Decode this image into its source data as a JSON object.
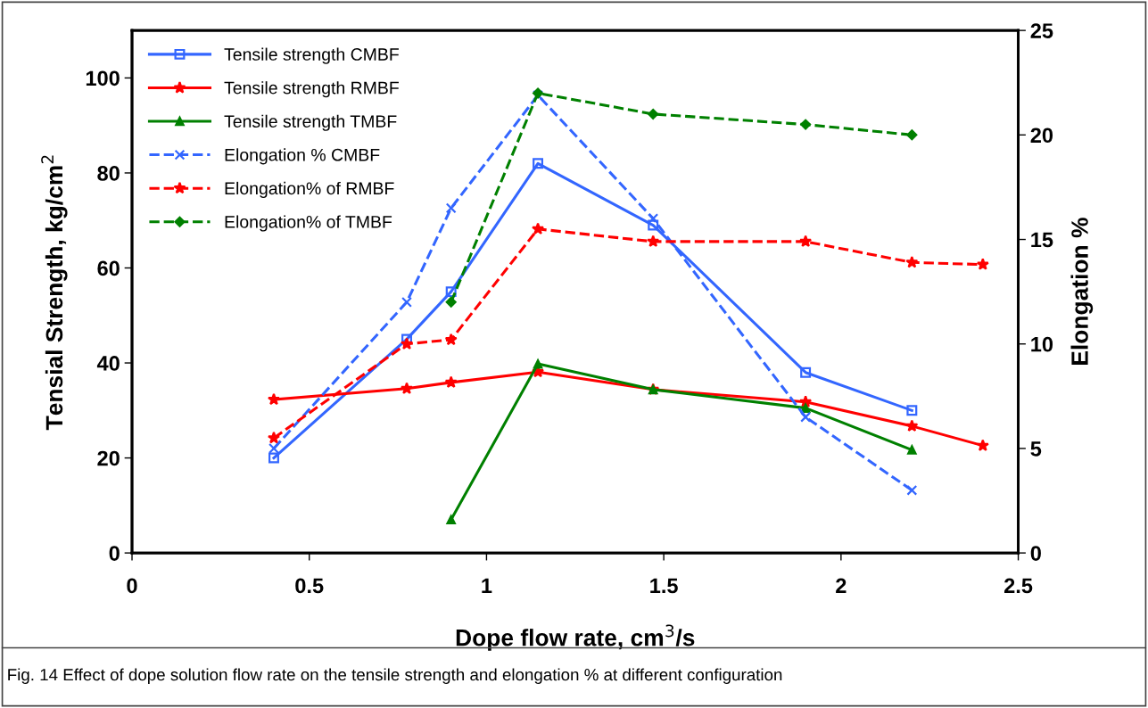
{
  "chart_data": {
    "type": "line",
    "xlabel": "Dope flow rate, cm$^{3}$/s",
    "ylabel": "Tensial Strength, kg/cm$^{2}$",
    "y2label": "Elongation %",
    "xlim": [
      0,
      2.5
    ],
    "xticks": [
      0,
      0.5,
      1,
      1.5,
      2,
      2.5
    ],
    "ylim": [
      0,
      110
    ],
    "yticks": [
      0,
      20,
      40,
      60,
      80,
      100
    ],
    "y2lim": [
      0,
      25
    ],
    "y2ticks": [
      0,
      5,
      10,
      15,
      20,
      25
    ],
    "grid": false,
    "legend": "top left",
    "annotations": [
      "Fig. 14 Effect of dope solution flow rate on the tensile strength and elongation % at different configuration"
    ],
    "series": [
      {
        "name": "Tensile strength CMBF",
        "color": "#3366ff",
        "marker": "square",
        "line_style": "solid",
        "x": [
          0.4,
          0.775,
          0.9,
          1.145,
          1.47,
          1.9,
          2.2
        ],
        "values": [
          20,
          45,
          55,
          82,
          69,
          38,
          30
        ]
      },
      {
        "name": "Tensile strength RMBF",
        "color": "#ff0000",
        "marker": "star",
        "line_style": "solid",
        "x": [
          0.4,
          0.775,
          0.9,
          1.145,
          1.47,
          1.9,
          2.2,
          2.4
        ],
        "values": [
          32.3,
          34.6,
          35.9,
          38.1,
          34.4,
          31.8,
          26.7,
          22.6
        ]
      },
      {
        "name": "Tensile strength TMBF",
        "color": "#008000",
        "marker": "triangle",
        "line_style": "solid",
        "x": [
          0.9,
          1.145,
          1.47,
          1.9,
          2.2
        ],
        "values": [
          7,
          39.8,
          34.4,
          30.5,
          21.7
        ]
      },
      {
        "name": "Elongation % CMBF",
        "color": "#3366ff",
        "marker": "cross",
        "line_style": "dashed",
        "axis": "y2",
        "x": [
          0.4,
          0.775,
          0.9,
          1.145,
          1.47,
          1.9,
          2.2
        ],
        "values": [
          5,
          12,
          16.5,
          21.9,
          16,
          6.5,
          3
        ]
      },
      {
        "name": "Elongation% of RMBF",
        "color": "#ff0000",
        "marker": "star",
        "line_style": "dashed",
        "axis": "y2",
        "x": [
          0.4,
          0.775,
          0.9,
          1.145,
          1.47,
          1.9,
          2.2,
          2.4
        ],
        "values": [
          5.5,
          10,
          10.2,
          15.5,
          14.9,
          14.9,
          13.9,
          13.8
        ]
      },
      {
        "name": "Elongation% of TMBF",
        "color": "#008000",
        "marker": "diamond",
        "line_style": "dashed",
        "axis": "y2",
        "x": [
          0.9,
          1.145,
          1.47,
          1.9,
          2.2
        ],
        "values": [
          12,
          22,
          21,
          20.5,
          20
        ]
      }
    ]
  }
}
